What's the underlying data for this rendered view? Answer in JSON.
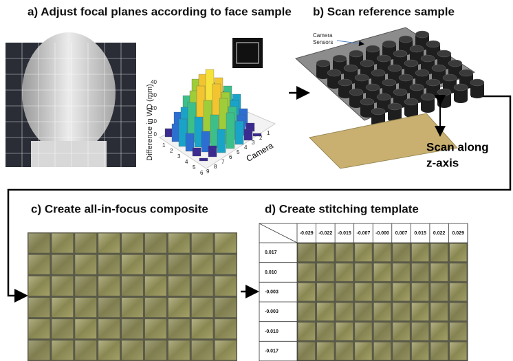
{
  "panels": [
    {
      "title": "a) Adjust focal planes according to face sample",
      "plot": {
        "ylabel": "Difference in WD (mm)",
        "yticks": [
          "0",
          "10",
          "20",
          "30",
          "40"
        ],
        "xlabel": "Camera",
        "xticks": [
          "1",
          "2",
          "3",
          "4",
          "5",
          "6"
        ],
        "zticks": [
          "9",
          "8",
          "7",
          "6",
          "5",
          "4",
          "3",
          "2",
          "1"
        ]
      }
    },
    {
      "title": "b) Scan reference sample",
      "labels": [
        "Camera",
        "Sensors",
        "Scan along",
        "z-axis"
      ]
    },
    {
      "title": "c) Create all-in-focus composite"
    },
    {
      "title": "d) Create stitching template",
      "table": {
        "columns": [
          "-0.029",
          "-0.022",
          "-0.015",
          "-0.007",
          "-0.000",
          "0.007",
          "0.015",
          "0.022",
          "0.029"
        ],
        "rows": [
          "0.017",
          "0.010",
          "-0.003",
          "-0.003",
          "-0.010",
          "-0.017"
        ]
      }
    }
  ]
}
